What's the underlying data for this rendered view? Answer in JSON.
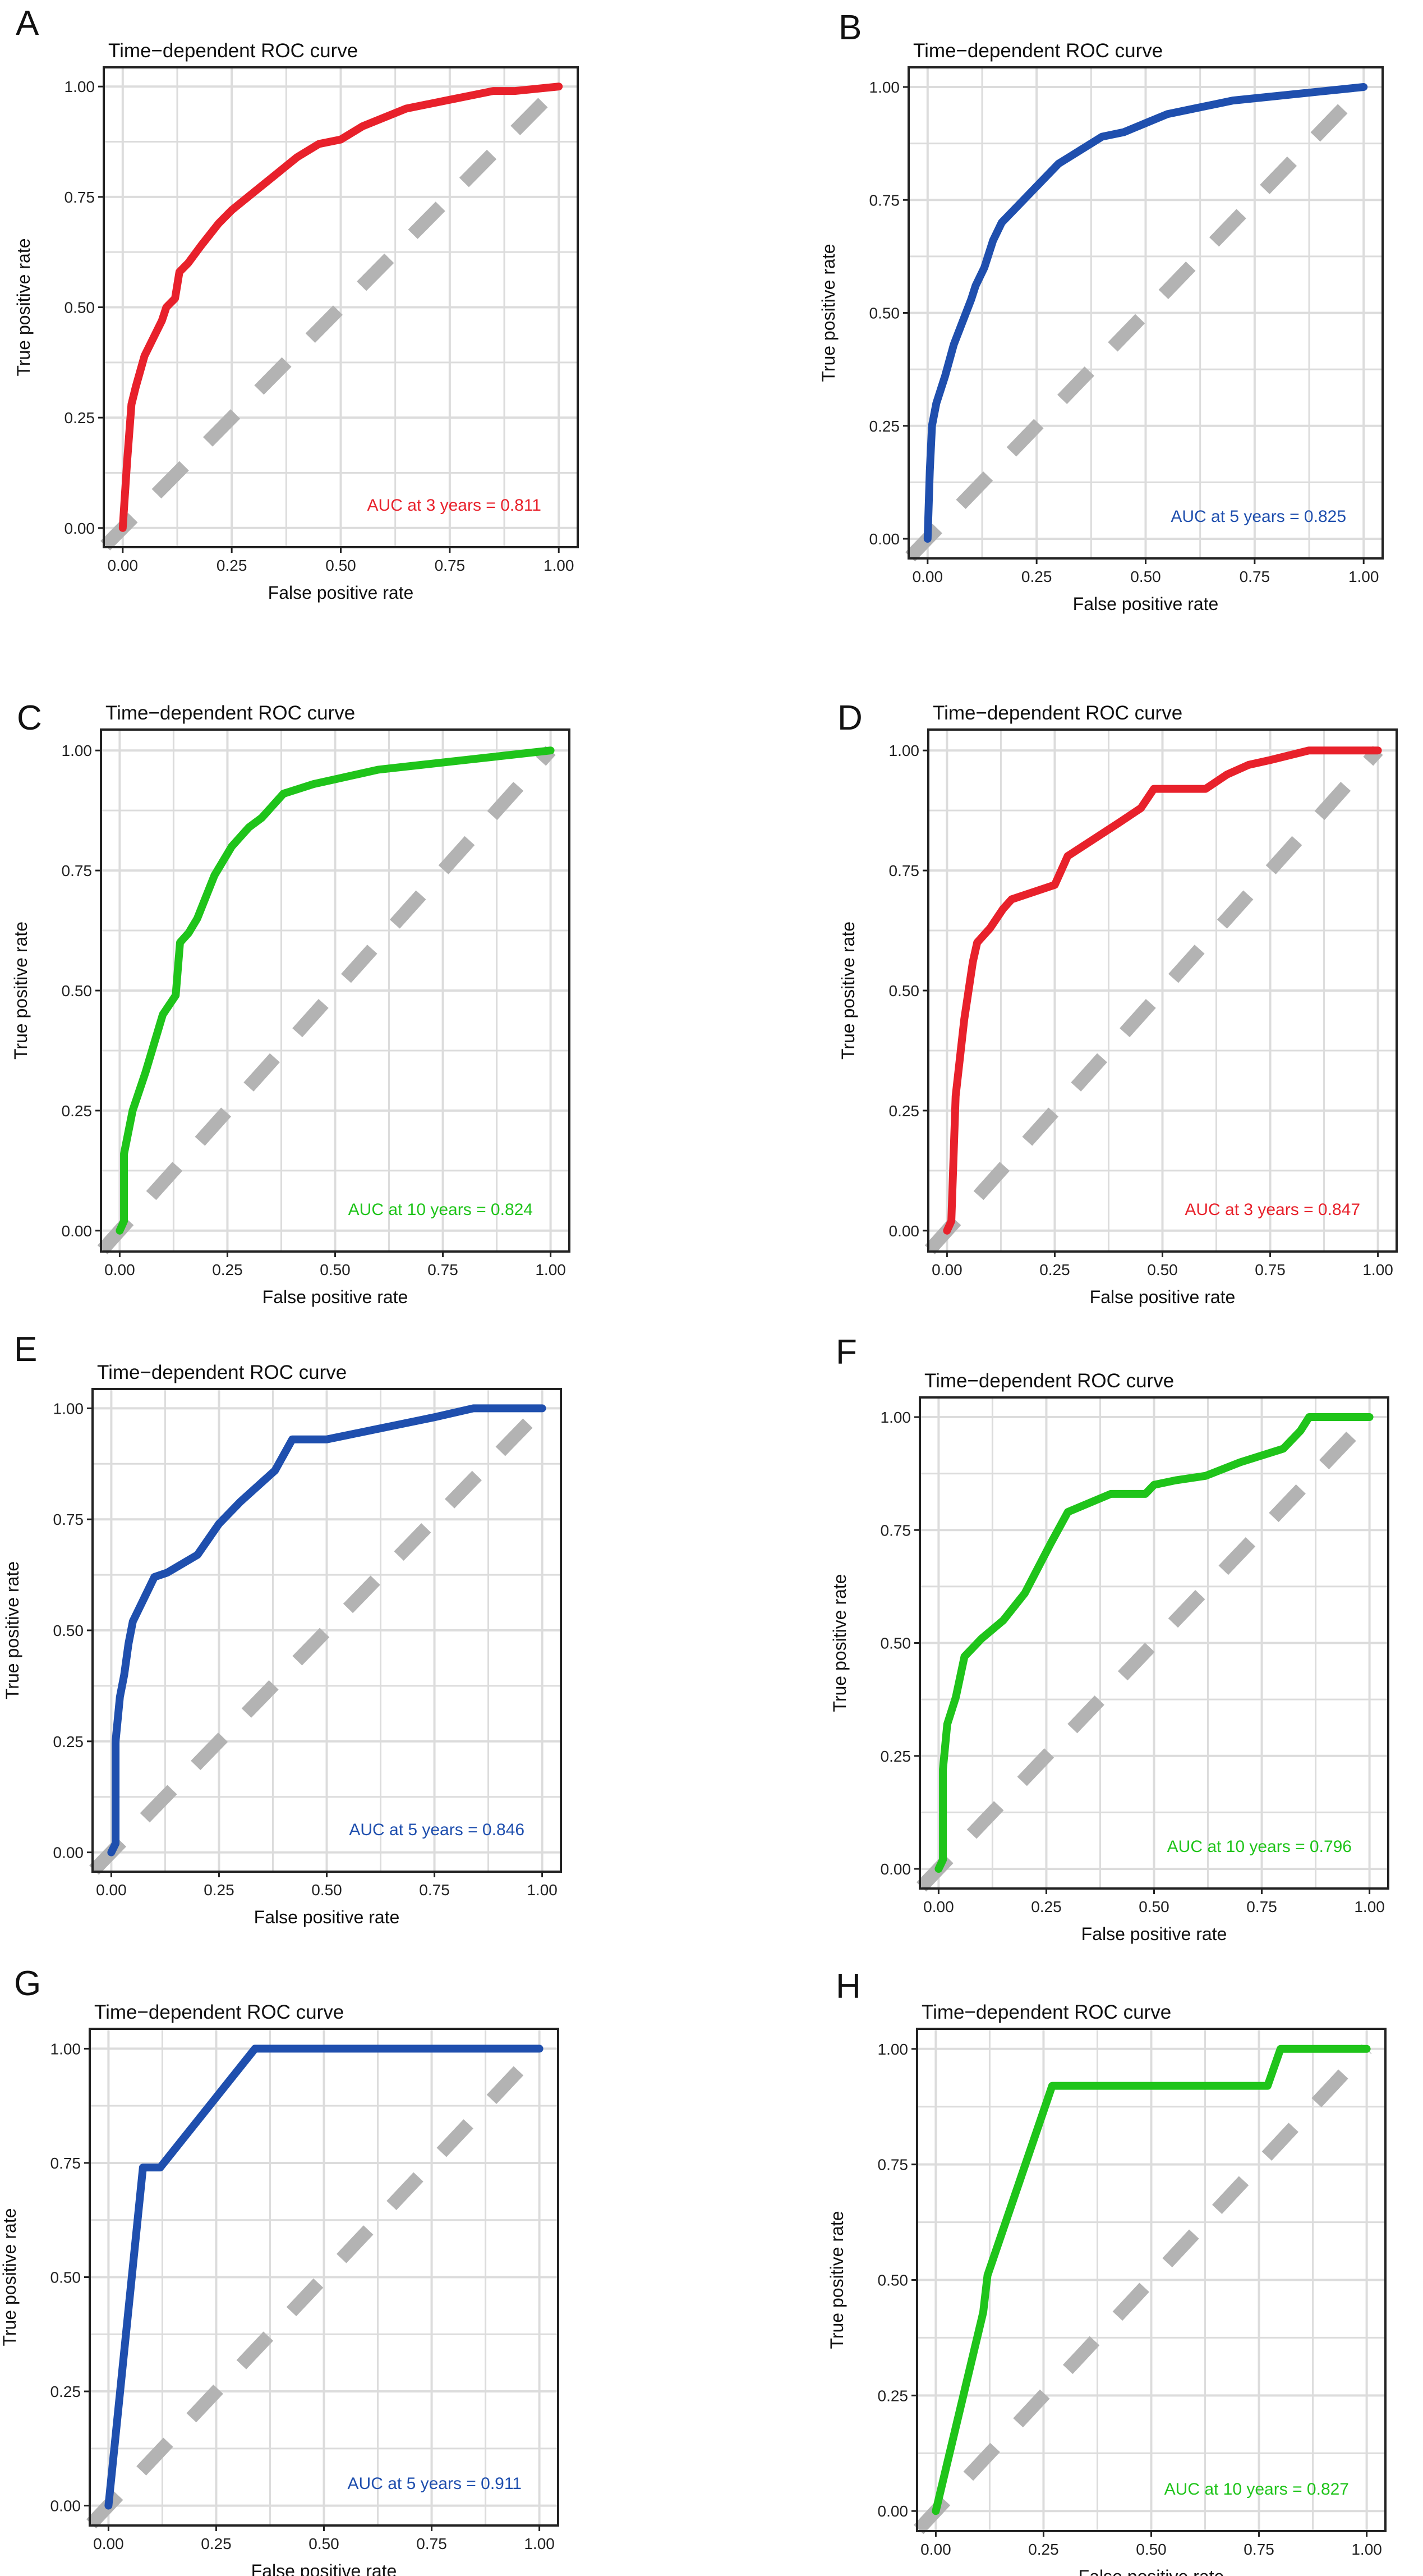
{
  "panels": [
    "A",
    "B",
    "C",
    "D",
    "E",
    "F",
    "G",
    "H"
  ],
  "colors": {
    "red": "#e8212b",
    "blue": "#1f4fae",
    "green": "#1fc41a",
    "diagonal": "#b3b3b3",
    "grid": "#dcdcdc"
  },
  "chart_data": [
    {
      "panel": "A",
      "type": "line",
      "title": "Time−dependent ROC curve",
      "xlabel": "False positive rate",
      "ylabel": "True positive rate",
      "xlim": [
        0,
        1
      ],
      "ylim": [
        0,
        1
      ],
      "ticks": [
        "0.00",
        "0.25",
        "0.50",
        "0.75",
        "1.00"
      ],
      "grid": true,
      "color": "#e8212b",
      "annotation": "AUC at 3 years = 0.811",
      "series": [
        {
          "x": [
            0,
            0.01,
            0.02,
            0.03,
            0.05,
            0.07,
            0.09,
            0.1,
            0.12,
            0.13,
            0.15,
            0.18,
            0.22,
            0.25,
            0.3,
            0.35,
            0.4,
            0.45,
            0.5,
            0.55,
            0.6,
            0.65,
            0.7,
            0.75,
            0.8,
            0.85,
            0.9,
            1.0
          ],
          "y": [
            0,
            0.15,
            0.28,
            0.32,
            0.39,
            0.43,
            0.47,
            0.5,
            0.52,
            0.58,
            0.6,
            0.64,
            0.69,
            0.72,
            0.76,
            0.8,
            0.84,
            0.87,
            0.88,
            0.91,
            0.93,
            0.95,
            0.96,
            0.97,
            0.98,
            0.99,
            0.99,
            1.0
          ]
        }
      ]
    },
    {
      "panel": "B",
      "type": "line",
      "title": "Time−dependent ROC curve",
      "xlabel": "False positive rate",
      "ylabel": "True positive rate",
      "xlim": [
        0,
        1
      ],
      "ylim": [
        0,
        1
      ],
      "ticks": [
        "0.00",
        "0.25",
        "0.50",
        "0.75",
        "1.00"
      ],
      "grid": true,
      "color": "#1f4fae",
      "annotation": "AUC at 5 years = 0.825",
      "series": [
        {
          "x": [
            0,
            0.005,
            0.01,
            0.02,
            0.04,
            0.06,
            0.08,
            0.1,
            0.11,
            0.13,
            0.15,
            0.17,
            0.2,
            0.25,
            0.3,
            0.35,
            0.4,
            0.45,
            0.5,
            0.55,
            0.6,
            0.7,
            0.8,
            0.9,
            1.0
          ],
          "y": [
            0,
            0.15,
            0.25,
            0.3,
            0.36,
            0.43,
            0.48,
            0.53,
            0.56,
            0.6,
            0.66,
            0.7,
            0.73,
            0.78,
            0.83,
            0.86,
            0.89,
            0.9,
            0.92,
            0.94,
            0.95,
            0.97,
            0.98,
            0.99,
            1.0
          ]
        }
      ]
    },
    {
      "panel": "C",
      "type": "line",
      "title": "Time−dependent ROC curve",
      "xlabel": "False positive rate",
      "ylabel": "True positive rate",
      "xlim": [
        0,
        1
      ],
      "ylim": [
        0,
        1
      ],
      "ticks": [
        "0.00",
        "0.25",
        "0.50",
        "0.75",
        "1.00"
      ],
      "grid": true,
      "color": "#1fc41a",
      "annotation": "AUC at 10 years = 0.824",
      "series": [
        {
          "x": [
            0,
            0.01,
            0.01,
            0.03,
            0.06,
            0.09,
            0.1,
            0.13,
            0.14,
            0.16,
            0.18,
            0.22,
            0.26,
            0.3,
            0.33,
            0.35,
            0.38,
            0.45,
            0.5,
            0.55,
            0.6,
            0.7,
            0.8,
            0.9,
            1.0
          ],
          "y": [
            0,
            0.02,
            0.16,
            0.25,
            0.33,
            0.42,
            0.45,
            0.49,
            0.6,
            0.62,
            0.65,
            0.74,
            0.8,
            0.84,
            0.86,
            0.88,
            0.91,
            0.93,
            0.94,
            0.95,
            0.96,
            0.97,
            0.98,
            0.99,
            1.0
          ]
        }
      ]
    },
    {
      "panel": "D",
      "type": "line",
      "title": "Time−dependent ROC curve",
      "xlabel": "False positive rate",
      "ylabel": "True positive rate",
      "xlim": [
        0,
        1
      ],
      "ylim": [
        0,
        1
      ],
      "ticks": [
        "0.00",
        "0.25",
        "0.50",
        "0.75",
        "1.00"
      ],
      "grid": true,
      "color": "#e8212b",
      "annotation": "AUC at 3 years = 0.847",
      "series": [
        {
          "x": [
            0,
            0.01,
            0.02,
            0.04,
            0.06,
            0.07,
            0.1,
            0.13,
            0.15,
            0.25,
            0.28,
            0.4,
            0.45,
            0.48,
            0.55,
            0.6,
            0.65,
            0.7,
            0.75,
            0.84,
            1.0
          ],
          "y": [
            0,
            0.02,
            0.28,
            0.44,
            0.56,
            0.6,
            0.63,
            0.67,
            0.69,
            0.72,
            0.78,
            0.85,
            0.88,
            0.92,
            0.92,
            0.92,
            0.95,
            0.97,
            0.98,
            1.0,
            1.0
          ]
        }
      ]
    },
    {
      "panel": "E",
      "type": "line",
      "title": "Time−dependent ROC curve",
      "xlabel": "False positive rate",
      "ylabel": "True positive rate",
      "xlim": [
        0,
        1
      ],
      "ylim": [
        0,
        1
      ],
      "ticks": [
        "0.00",
        "0.25",
        "0.50",
        "0.75",
        "1.00"
      ],
      "grid": true,
      "color": "#1f4fae",
      "annotation": "AUC at 5 years = 0.846",
      "series": [
        {
          "x": [
            0,
            0.01,
            0.01,
            0.02,
            0.03,
            0.04,
            0.05,
            0.07,
            0.1,
            0.13,
            0.2,
            0.25,
            0.3,
            0.38,
            0.42,
            0.5,
            0.55,
            0.65,
            0.75,
            0.84,
            1.0
          ],
          "y": [
            0,
            0.02,
            0.25,
            0.35,
            0.4,
            0.47,
            0.52,
            0.56,
            0.62,
            0.63,
            0.67,
            0.74,
            0.79,
            0.86,
            0.93,
            0.93,
            0.94,
            0.96,
            0.98,
            1.0,
            1.0
          ]
        }
      ]
    },
    {
      "panel": "F",
      "type": "line",
      "title": "Time−dependent ROC curve",
      "xlabel": "False positive rate",
      "ylabel": "True positive rate",
      "xlim": [
        0,
        1
      ],
      "ylim": [
        0,
        1
      ],
      "ticks": [
        "0.00",
        "0.25",
        "0.50",
        "0.75",
        "1.00"
      ],
      "grid": true,
      "color": "#1fc41a",
      "annotation": "AUC at 10 years = 0.796",
      "series": [
        {
          "x": [
            0,
            0.01,
            0.01,
            0.02,
            0.04,
            0.06,
            0.1,
            0.15,
            0.2,
            0.26,
            0.3,
            0.35,
            0.4,
            0.48,
            0.5,
            0.55,
            0.62,
            0.7,
            0.8,
            0.84,
            0.86,
            1.0
          ],
          "y": [
            0,
            0.02,
            0.22,
            0.32,
            0.38,
            0.47,
            0.51,
            0.55,
            0.61,
            0.72,
            0.79,
            0.81,
            0.83,
            0.83,
            0.85,
            0.86,
            0.87,
            0.9,
            0.93,
            0.97,
            1.0,
            1.0
          ]
        }
      ]
    },
    {
      "panel": "G",
      "type": "line",
      "title": "Time−dependent ROC curve",
      "xlabel": "False positive rate",
      "ylabel": "True positive rate",
      "xlim": [
        0,
        1
      ],
      "ylim": [
        0,
        1
      ],
      "ticks": [
        "0.00",
        "0.25",
        "0.50",
        "0.75",
        "1.00"
      ],
      "grid": true,
      "color": "#1f4fae",
      "annotation": "AUC at 5 years = 0.911",
      "series": [
        {
          "x": [
            0,
            0.08,
            0.12,
            0.34,
            1.0
          ],
          "y": [
            0,
            0.74,
            0.74,
            1.0,
            1.0
          ]
        }
      ]
    },
    {
      "panel": "H",
      "type": "line",
      "title": "Time−dependent ROC curve",
      "xlabel": "False positive rate",
      "ylabel": "True positive rate",
      "xlim": [
        0,
        1
      ],
      "ylim": [
        0,
        1
      ],
      "ticks": [
        "0.00",
        "0.25",
        "0.50",
        "0.75",
        "1.00"
      ],
      "grid": true,
      "color": "#1fc41a",
      "annotation": "AUC at 10 years = 0.827",
      "series": [
        {
          "x": [
            0,
            0.11,
            0.12,
            0.27,
            0.5,
            0.77,
            0.8,
            1.0
          ],
          "y": [
            0,
            0.43,
            0.51,
            0.92,
            0.92,
            0.92,
            1.0,
            1.0
          ]
        }
      ]
    }
  ]
}
